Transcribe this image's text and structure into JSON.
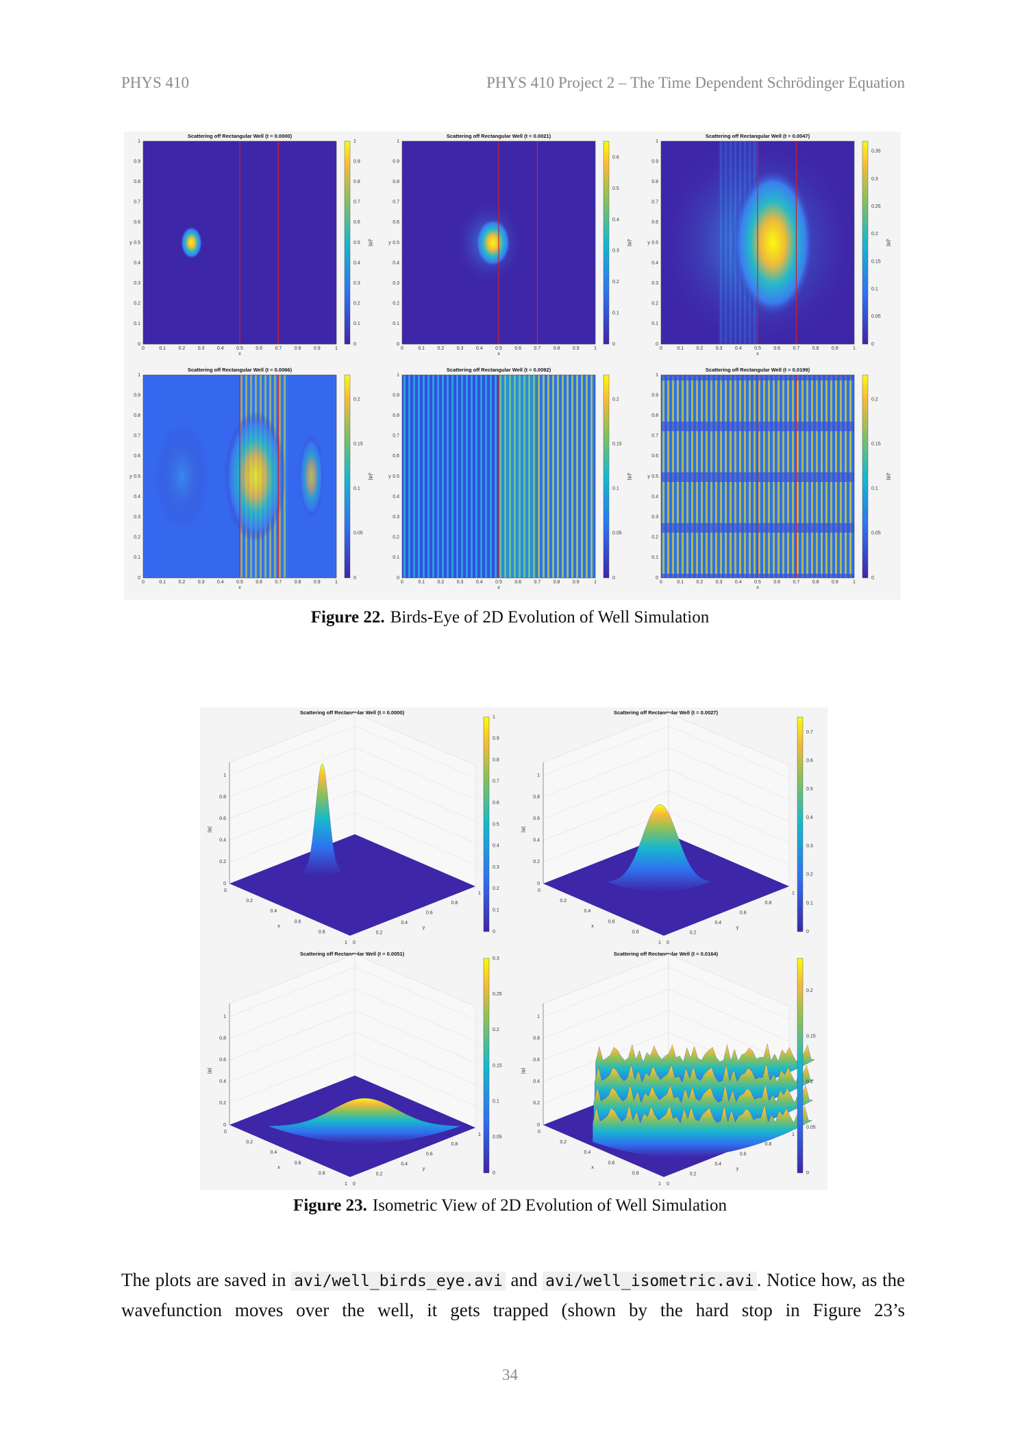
{
  "header": {
    "left": "PHYS 410",
    "right": "PHYS 410 Project 2 – The Time Dependent Schrödinger Equation"
  },
  "figure_22": {
    "axis_ticks": [
      "0",
      "0.1",
      "0.2",
      "0.3",
      "0.4",
      "0.5",
      "0.6",
      "0.7",
      "0.8",
      "0.9",
      "1"
    ],
    "x_label": "x",
    "y_label": "y",
    "colorbar_label": "|ψ|²",
    "panels": [
      {
        "title": "Scattering off Rectangular Well (t = 0.0000)",
        "colorbar_ticks": [
          "0",
          "0.1",
          "0.2",
          "0.3",
          "0.4",
          "0.5",
          "0.6",
          "0.7",
          "0.8",
          "0.9",
          "1"
        ]
      },
      {
        "title": "Scattering off Rectangular Well (t = 0.0021)",
        "colorbar_ticks": [
          "0",
          "0.1",
          "0.2",
          "0.3",
          "0.4",
          "0.5",
          "0.6"
        ]
      },
      {
        "title": "Scattering off Rectangular Well (t = 0.0047)",
        "colorbar_ticks": [
          "0",
          "0.05",
          "0.1",
          "0.15",
          "0.2",
          "0.25",
          "0.3",
          "0.35"
        ]
      },
      {
        "title": "Scattering off Rectangular Well (t = 0.0066)",
        "colorbar_ticks": [
          "0",
          "0.05",
          "0.1",
          "0.15",
          "0.2"
        ]
      },
      {
        "title": "Scattering off Rectangular Well (t = 0.0092)",
        "colorbar_ticks": [
          "0",
          "0.05",
          "0.1",
          "0.15",
          "0.2"
        ]
      },
      {
        "title": "Scattering off Rectangular Well (t = 0.0199)",
        "colorbar_ticks": [
          "0",
          "0.05",
          "0.1",
          "0.15",
          "0.2"
        ]
      }
    ],
    "caption_label": "Figure 22.",
    "caption": "Birds-Eye of 2D Evolution of Well Simulation"
  },
  "figure_23": {
    "z_ticks": [
      "0",
      "0.2",
      "0.4",
      "0.6",
      "0.8",
      "1"
    ],
    "floor_ticks": [
      "0",
      "0.2",
      "0.4",
      "0.6",
      "0.8",
      "1"
    ],
    "x_label": "x",
    "y_label": "y",
    "z_label": "|ψ|",
    "panels": [
      {
        "title": "Scattering off Rectangular Well (t = 0.0000)",
        "colorbar_ticks": [
          "0",
          "0.1",
          "0.2",
          "0.3",
          "0.4",
          "0.5",
          "0.6",
          "0.7",
          "0.8",
          "0.9",
          "1"
        ]
      },
      {
        "title": "Scattering off Rectangular Well (t = 0.0027)",
        "colorbar_ticks": [
          "0",
          "0.1",
          "0.2",
          "0.3",
          "0.4",
          "0.5",
          "0.6",
          "0.7"
        ]
      },
      {
        "title": "Scattering off Rectangular Well (t = 0.0051)",
        "colorbar_ticks": [
          "0",
          "0.05",
          "0.1",
          "0.15",
          "0.2",
          "0.25",
          "0.3"
        ]
      },
      {
        "title": "Scattering off Rectangular Well (t = 0.0164)",
        "colorbar_ticks": [
          "0",
          "0.05",
          "0.1",
          "0.15",
          "0.2"
        ]
      }
    ],
    "caption_label": "Figure 23.",
    "caption": "Isometric View of 2D Evolution of Well Simulation"
  },
  "paragraph": {
    "parts": [
      "The plots are saved in",
      "avi/well_birds_eye.avi",
      "and",
      "avi/well_isometric.avi",
      ". Notice how, as the wavefunction moves over the well, it gets trapped (shown by the hard stop in Figure 23’s"
    ]
  },
  "page_number": "34"
}
